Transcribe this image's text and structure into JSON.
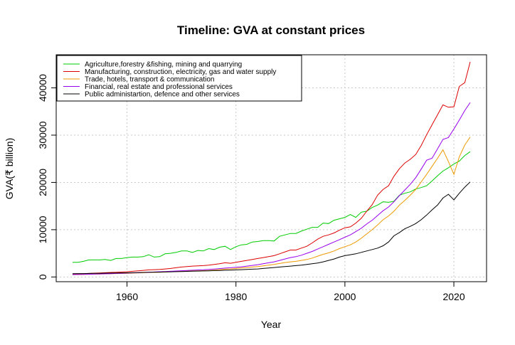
{
  "chart_data": {
    "type": "line",
    "title": "Timeline: GVA at constant prices",
    "xlabel": "Year",
    "ylabel": "GVA(₹ billion)",
    "xlim": [
      1947,
      2026
    ],
    "ylim": [
      -1000,
      47000
    ],
    "x_ticks": [
      1960,
      1980,
      2000,
      2020
    ],
    "y_ticks": [
      0,
      10000,
      20000,
      30000,
      40000
    ],
    "grid": true,
    "legend_position": "top-left",
    "x": [
      1950,
      1951,
      1952,
      1953,
      1954,
      1955,
      1956,
      1957,
      1958,
      1959,
      1960,
      1961,
      1962,
      1963,
      1964,
      1965,
      1966,
      1967,
      1968,
      1969,
      1970,
      1971,
      1972,
      1973,
      1974,
      1975,
      1976,
      1977,
      1978,
      1979,
      1980,
      1981,
      1982,
      1983,
      1984,
      1985,
      1986,
      1987,
      1988,
      1989,
      1990,
      1991,
      1992,
      1993,
      1994,
      1995,
      1996,
      1997,
      1998,
      1999,
      2000,
      2001,
      2002,
      2003,
      2004,
      2005,
      2006,
      2007,
      2008,
      2009,
      2010,
      2011,
      2012,
      2013,
      2014,
      2015,
      2016,
      2017,
      2018,
      2019,
      2020,
      2021,
      2022,
      2023
    ],
    "series": [
      {
        "name": "Agriculture,forestry &fishing, mining and quarrying",
        "color": "#00cc00",
        "values": [
          3100,
          3100,
          3300,
          3600,
          3600,
          3600,
          3700,
          3500,
          3900,
          3900,
          4100,
          4200,
          4200,
          4300,
          4700,
          4200,
          4300,
          4900,
          5000,
          5200,
          5500,
          5500,
          5200,
          5600,
          5500,
          6000,
          5800,
          6300,
          6500,
          5800,
          6400,
          6800,
          6900,
          7400,
          7500,
          7700,
          7700,
          7600,
          8600,
          8900,
          9200,
          9200,
          9700,
          10100,
          10500,
          10500,
          11400,
          11300,
          12000,
          12300,
          12600,
          13200,
          12600,
          13700,
          13900,
          14700,
          15200,
          15900,
          15800,
          16000,
          17300,
          17700,
          18000,
          18600,
          18900,
          19300,
          20300,
          21400,
          22400,
          23100,
          23900,
          24500,
          25700,
          26500
        ],
        "show_in_legend": true
      },
      {
        "name": "Manufacturing, construction, electricity, gas and water supply",
        "color": "#dd0000",
        "values": [
          600,
          650,
          700,
          750,
          800,
          850,
          900,
          950,
          1000,
          1050,
          1100,
          1200,
          1300,
          1400,
          1500,
          1550,
          1600,
          1700,
          1800,
          1950,
          2100,
          2200,
          2300,
          2350,
          2400,
          2500,
          2650,
          2800,
          3000,
          2900,
          3100,
          3300,
          3500,
          3700,
          3900,
          4100,
          4300,
          4500,
          4900,
          5300,
          5700,
          5700,
          6100,
          6500,
          7200,
          8000,
          8600,
          8900,
          9300,
          9900,
          10400,
          10600,
          11400,
          12400,
          13900,
          15300,
          17300,
          18500,
          19300,
          21300,
          22900,
          24100,
          24900,
          25900,
          27800,
          30100,
          32200,
          34300,
          36400,
          35900,
          36000,
          40300,
          41100,
          45500
        ],
        "show_in_legend": true
      },
      {
        "name": "Trade, hotels, transport & communication",
        "color": "#ee9900",
        "values": [
          500,
          520,
          540,
          570,
          590,
          620,
          650,
          680,
          710,
          740,
          780,
          820,
          860,
          900,
          950,
          970,
          1000,
          1050,
          1100,
          1150,
          1200,
          1250,
          1280,
          1300,
          1330,
          1380,
          1450,
          1550,
          1650,
          1700,
          1800,
          1900,
          2000,
          2100,
          2200,
          2350,
          2500,
          2650,
          2850,
          3050,
          3200,
          3300,
          3500,
          3700,
          4000,
          4400,
          4800,
          5100,
          5500,
          6000,
          6400,
          6800,
          7400,
          8200,
          9100,
          10000,
          11000,
          12100,
          12900,
          13900,
          15200,
          16200,
          17300,
          18500,
          20100,
          21700,
          23400,
          25100,
          26900,
          24400,
          21700,
          25400,
          27900,
          29600
        ],
        "show_in_legend": true
      },
      {
        "name": "Financial,  real estate and professional services",
        "color": "#9900ee",
        "values": [
          500,
          520,
          550,
          580,
          610,
          640,
          670,
          700,
          740,
          780,
          820,
          860,
          900,
          950,
          1000,
          1050,
          1100,
          1150,
          1200,
          1260,
          1320,
          1380,
          1430,
          1480,
          1530,
          1600,
          1680,
          1770,
          1870,
          1950,
          2050,
          2150,
          2300,
          2450,
          2600,
          2800,
          3000,
          3200,
          3500,
          3800,
          4100,
          4300,
          4600,
          5000,
          5400,
          5900,
          6400,
          6900,
          7400,
          7900,
          8400,
          8900,
          9600,
          10300,
          11200,
          12000,
          13000,
          14000,
          14800,
          15900,
          17200,
          18400,
          19600,
          21000,
          22800,
          24700,
          25100,
          27100,
          29100,
          29500,
          31300,
          33200,
          35200,
          36900
        ],
        "show_in_legend": true
      },
      {
        "name": "Public administartion, defence and other services",
        "color": "#000000",
        "values": [
          700,
          710,
          720,
          740,
          760,
          780,
          800,
          820,
          840,
          860,
          880,
          900,
          930,
          960,
          990,
          1010,
          1030,
          1060,
          1090,
          1120,
          1150,
          1180,
          1210,
          1240,
          1270,
          1300,
          1340,
          1380,
          1420,
          1460,
          1500,
          1550,
          1600,
          1650,
          1700,
          1800,
          1900,
          2000,
          2100,
          2200,
          2300,
          2400,
          2500,
          2650,
          2800,
          2950,
          3200,
          3500,
          3800,
          4200,
          4500,
          4700,
          4900,
          5200,
          5500,
          5800,
          6100,
          6600,
          7400,
          8700,
          9400,
          10200,
          10700,
          11300,
          12100,
          13100,
          14200,
          15200,
          16700,
          17500,
          16300,
          17700,
          19000,
          20100
        ],
        "show_in_legend": true
      }
    ]
  }
}
